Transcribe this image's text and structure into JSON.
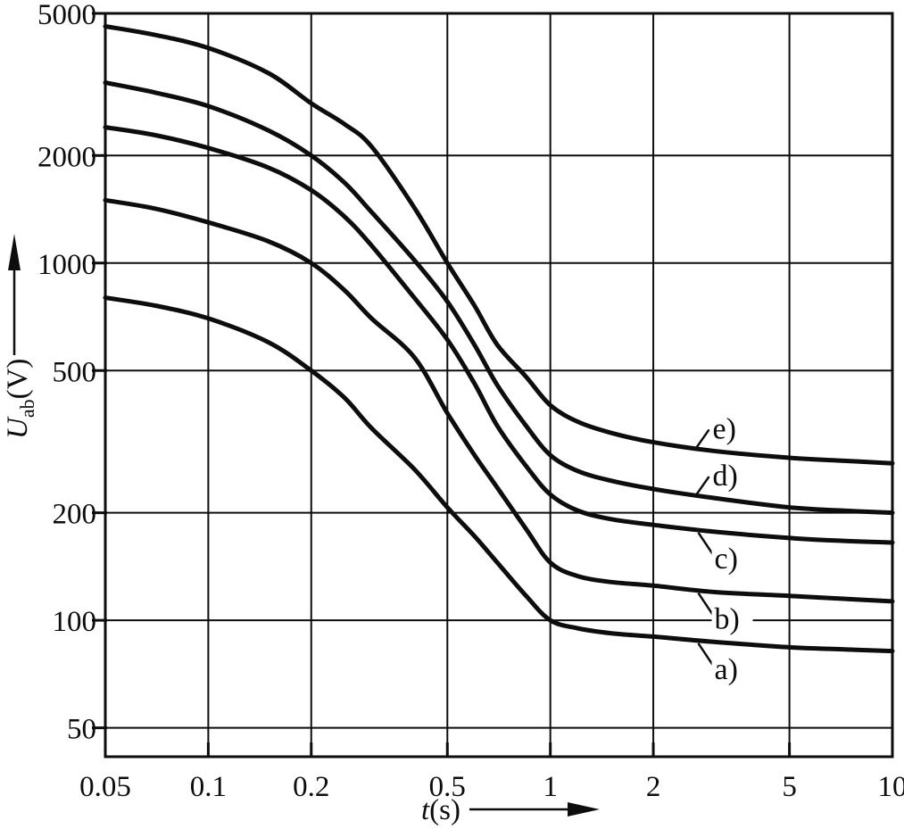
{
  "page": {
    "background": "#ffffff",
    "ink": "#0d0d0d"
  },
  "chart_data": {
    "type": "line",
    "title": "",
    "x_scale": "log",
    "y_scale": "log",
    "grid": true,
    "xlabel": {
      "symbol": "t",
      "unit": "(s)"
    },
    "ylabel": {
      "symbol": "U",
      "subscript": "ab",
      "unit": "(V)"
    },
    "xlim": [
      0.05,
      10
    ],
    "ylim": [
      41.5,
      5000
    ],
    "x_ticks": [
      0.05,
      0.1,
      0.2,
      0.5,
      1,
      2,
      5,
      10
    ],
    "y_ticks": [
      5000,
      2000,
      1000,
      500,
      200,
      100,
      50
    ],
    "x": [
      0.05,
      0.07,
      0.1,
      0.15,
      0.2,
      0.25,
      0.3,
      0.4,
      0.5,
      0.6,
      0.7,
      0.85,
      1,
      1.2,
      1.5,
      2,
      3,
      5,
      7,
      10
    ],
    "series": [
      {
        "name": "curve-a",
        "label": "a)",
        "label_side": "below",
        "values": [
          800,
          760,
          700,
          600,
          500,
          420,
          345,
          265,
          207,
          172,
          145,
          117,
          100,
          95,
          92,
          90,
          87,
          84,
          83,
          82
        ]
      },
      {
        "name": "curve-b",
        "label": "b)",
        "label_side": "below",
        "values": [
          1500,
          1420,
          1300,
          1150,
          1000,
          840,
          700,
          545,
          380,
          290,
          235,
          180,
          145,
          133,
          128,
          125,
          120,
          117,
          115,
          113
        ]
      },
      {
        "name": "curve-c",
        "label": "c)",
        "label_side": "below",
        "values": [
          2400,
          2280,
          2100,
          1850,
          1600,
          1350,
          1120,
          800,
          610,
          460,
          350,
          270,
          225,
          203,
          192,
          185,
          177,
          170,
          167,
          165
        ]
      },
      {
        "name": "curve-d",
        "label": "d)",
        "label_side": "above",
        "values": [
          3200,
          3000,
          2750,
          2350,
          2000,
          1680,
          1390,
          1020,
          780,
          590,
          455,
          350,
          290,
          262,
          246,
          233,
          220,
          207,
          203,
          200
        ]
      },
      {
        "name": "curve-e",
        "label": "e)",
        "label_side": "above",
        "values": [
          4600,
          4350,
          4000,
          3400,
          2800,
          2450,
          2120,
          1430,
          1000,
          760,
          590,
          480,
          400,
          360,
          335,
          315,
          298,
          285,
          280,
          275
        ]
      }
    ]
  }
}
